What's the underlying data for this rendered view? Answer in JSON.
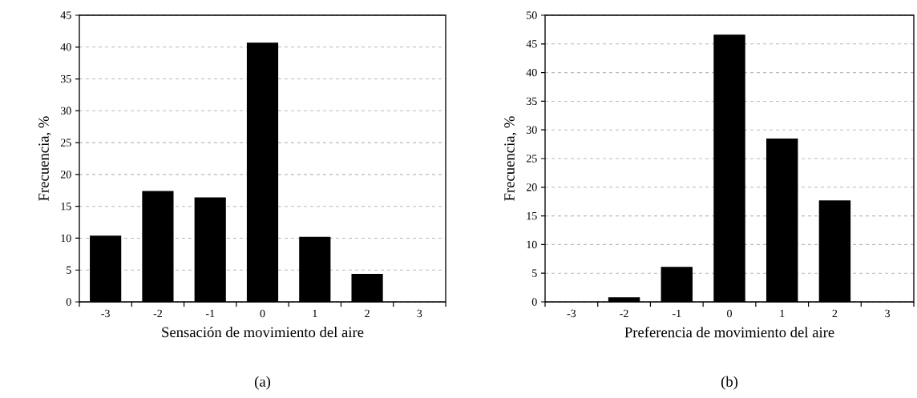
{
  "chart_data": [
    {
      "type": "bar",
      "xlabel": "Sensación de movimiento del aire",
      "ylabel": "Frecuencia, %",
      "annotations": [
        "(a)"
      ],
      "categories": [
        "-3",
        "-2",
        "-1",
        "0",
        "1",
        "2",
        "3"
      ],
      "values": [
        10.4,
        17.4,
        16.4,
        40.7,
        10.2,
        4.4,
        0
      ],
      "color": "#000000",
      "ylim": [
        0,
        45
      ],
      "yticks": [
        0,
        5,
        10,
        15,
        20,
        25,
        30,
        35,
        40,
        45
      ],
      "grid": "y"
    },
    {
      "type": "bar",
      "xlabel": "Preferencia de movimiento del aire",
      "ylabel": "Frecuencia, %",
      "annotations": [
        "(b)"
      ],
      "categories": [
        "-3",
        "-2",
        "-1",
        "0",
        "1",
        "2",
        "3"
      ],
      "values": [
        0,
        0.8,
        6.1,
        46.6,
        28.5,
        17.7,
        0
      ],
      "color": "#000000",
      "ylim": [
        0,
        50
      ],
      "yticks": [
        0,
        5,
        10,
        15,
        20,
        25,
        30,
        35,
        40,
        45,
        50
      ],
      "grid": "y"
    }
  ]
}
